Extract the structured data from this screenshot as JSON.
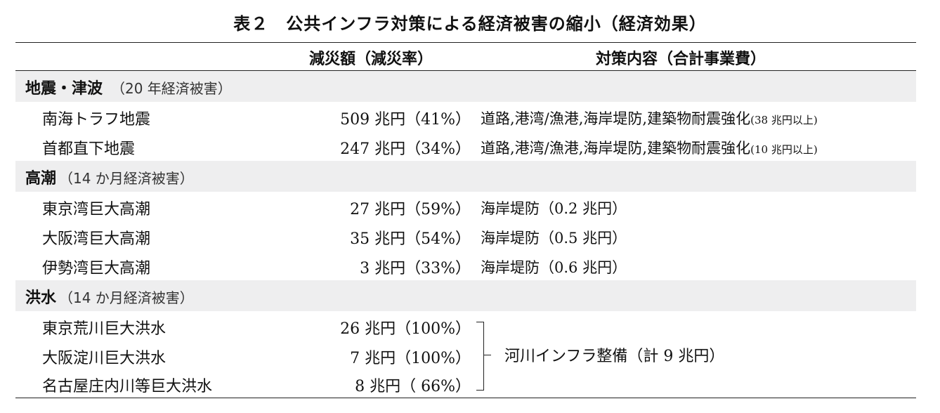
{
  "title": "表２　公共インフラ対策による経済被害の縮小（経済効果）",
  "headers": {
    "reduction": "減災額（減災率）",
    "measures": "対策内容（合計事業費）"
  },
  "sections": {
    "earthquake": {
      "name": "地震・津波",
      "note": "（20 年経済被害）",
      "rows": [
        {
          "label": "南海トラフ地震",
          "value": "509 兆円（41%）",
          "measure": "道路,港湾/漁港,海岸堤防,建築物耐震強化",
          "cost": "(38 兆円以上)"
        },
        {
          "label": "首都直下地震",
          "value": "247 兆円（34%）",
          "measure": "道路,港湾/漁港,海岸堤防,建築物耐震強化",
          "cost": "(10 兆円以上)"
        }
      ]
    },
    "storm_surge": {
      "name": "高潮",
      "note": "（14 か月経済被害）",
      "rows": [
        {
          "label": "東京湾巨大高潮",
          "value": "27 兆円（59%）",
          "measure": "海岸堤防（0.2 兆円）"
        },
        {
          "label": "大阪湾巨大高潮",
          "value": "35 兆円（54%）",
          "measure": "海岸堤防（0.5 兆円）"
        },
        {
          "label": "伊勢湾巨大高潮",
          "value": "3 兆円（33%）",
          "measure": "海岸堤防（0.6 兆円）"
        }
      ]
    },
    "flood": {
      "name": "洪水",
      "note": "（14 か月経済被害）",
      "rows": [
        {
          "label": "東京荒川巨大洪水",
          "value": "26 兆円（100%）"
        },
        {
          "label": "大阪淀川巨大洪水",
          "value": "7 兆円（100%）"
        },
        {
          "label": "名古屋庄内川等巨大洪水",
          "value": "8 兆円（ 66%）"
        }
      ],
      "shared_measure": "河川インフラ整備（計 9 兆円）"
    }
  }
}
